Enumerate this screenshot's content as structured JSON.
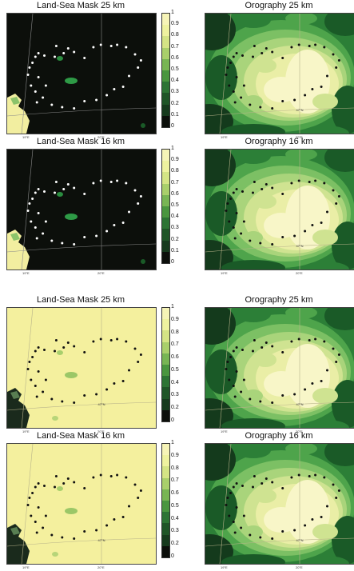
{
  "chart_data": [
    {
      "type": "heatmap",
      "title": "Land-Sea Mask 25 km",
      "variant": "mask-dark",
      "colorbar": {
        "ticks": [
          "0",
          "0.1",
          "0.2",
          "0.3",
          "0.4",
          "0.5",
          "0.6",
          "0.7",
          "0.8",
          "0.9",
          "1"
        ]
      },
      "lon_labels": [
        "19°E",
        "20°E"
      ]
    },
    {
      "type": "heatmap",
      "title": "Orography 25 km",
      "variant": "orog",
      "lon_labels": [
        "19°E",
        "20°E"
      ],
      "center_label": "47°N"
    },
    {
      "type": "heatmap",
      "title": "Land-Sea Mask 16 km",
      "variant": "mask-dark",
      "colorbar": {
        "ticks": [
          "0",
          "0.1",
          "0.2",
          "0.3",
          "0.4",
          "0.5",
          "0.6",
          "0.7",
          "0.8",
          "0.9",
          "1"
        ]
      },
      "lon_labels": [
        "19°E",
        "20°E"
      ]
    },
    {
      "type": "heatmap",
      "title": "Orography 16 km",
      "variant": "orog",
      "lon_labels": [
        "19°E",
        "20°E"
      ],
      "center_label": "47°N"
    },
    {
      "type": "heatmap",
      "title": "Land-Sea Mask 25 km",
      "variant": "mask-light",
      "colorbar": {
        "ticks": [
          "0",
          "0.2",
          "0.3",
          "0.4",
          "0.5",
          "0.6",
          "0.7",
          "0.8",
          "0.9",
          "1"
        ]
      },
      "lon_labels": [
        "19°E",
        "20°E"
      ],
      "center_label": "47°N"
    },
    {
      "type": "heatmap",
      "title": "Orography 25 km",
      "variant": "orog",
      "lon_labels": [
        "19°E",
        "20°E"
      ],
      "center_label": "47°N"
    },
    {
      "type": "heatmap",
      "title": "Land-Sea Mask 16 km",
      "variant": "mask-light",
      "colorbar": {
        "ticks": [
          "0",
          "0.2",
          "0.3",
          "0.4",
          "0.5",
          "0.6",
          "0.7",
          "0.8",
          "0.9",
          "1"
        ]
      },
      "lon_labels": [
        "19°E",
        "20°E"
      ],
      "center_label": "47°N"
    },
    {
      "type": "heatmap",
      "title": "Orography 16 km",
      "variant": "orog",
      "lon_labels": [
        "19°E",
        "20°E"
      ],
      "center_label": "47°N"
    }
  ],
  "colors": {
    "mask_dark_bg": "#0c0f0b",
    "mask_light_bg": "#f4f09e",
    "orog_scale": [
      "#f8f6c8",
      "#eaeea6",
      "#cfe391",
      "#a9d47b",
      "#7cc064",
      "#4ea44b",
      "#2c7f37",
      "#1a5a27",
      "#143a1c"
    ],
    "colorbar_scale": [
      "#0c0f0b",
      "#163a1d",
      "#1f5527",
      "#2d7434",
      "#4a963f",
      "#78b554",
      "#a9cf6b",
      "#d4e485",
      "#eef29f",
      "#f6f4b7"
    ]
  },
  "stations": [
    [
      0.14,
      0.51
    ],
    [
      0.16,
      0.6
    ],
    [
      0.19,
      0.65
    ],
    [
      0.24,
      0.7
    ],
    [
      0.3,
      0.76
    ],
    [
      0.37,
      0.78
    ],
    [
      0.45,
      0.79
    ],
    [
      0.52,
      0.73
    ],
    [
      0.6,
      0.72
    ],
    [
      0.67,
      0.68
    ],
    [
      0.72,
      0.63
    ],
    [
      0.78,
      0.61
    ],
    [
      0.82,
      0.52
    ],
    [
      0.88,
      0.45
    ],
    [
      0.9,
      0.39
    ],
    [
      0.86,
      0.34
    ],
    [
      0.8,
      0.28
    ],
    [
      0.74,
      0.26
    ],
    [
      0.7,
      0.27
    ],
    [
      0.63,
      0.26
    ],
    [
      0.58,
      0.28
    ],
    [
      0.52,
      0.37
    ],
    [
      0.45,
      0.32
    ],
    [
      0.41,
      0.29
    ],
    [
      0.38,
      0.33
    ],
    [
      0.32,
      0.36
    ],
    [
      0.25,
      0.35
    ],
    [
      0.21,
      0.33
    ],
    [
      0.19,
      0.36
    ],
    [
      0.17,
      0.41
    ],
    [
      0.15,
      0.45
    ],
    [
      0.21,
      0.53
    ],
    [
      0.2,
      0.74
    ],
    [
      0.26,
      0.6
    ],
    [
      0.33,
      0.27
    ]
  ]
}
